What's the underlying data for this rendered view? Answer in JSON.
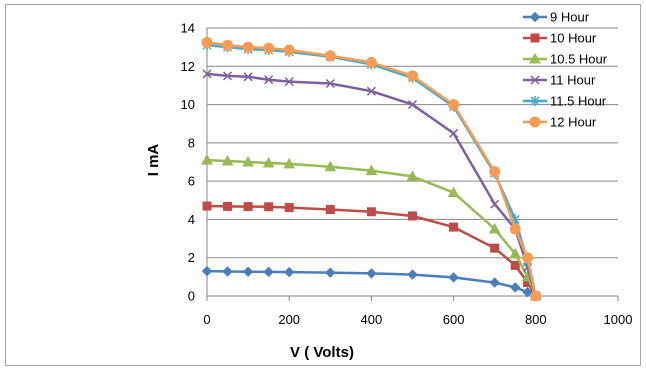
{
  "chart_data": {
    "type": "line",
    "title": "",
    "xlabel": "V ( Volts)",
    "ylabel": "I  mA",
    "xlim": [
      0,
      1000
    ],
    "ylim": [
      0,
      14
    ],
    "xticks": [
      0,
      200,
      400,
      600,
      800,
      1000
    ],
    "yticks": [
      0,
      2,
      4,
      6,
      8,
      10,
      12,
      14
    ],
    "grid": "horizontal",
    "legend": "right",
    "series": [
      {
        "name": "9 Hour",
        "color": "#4a7ebb",
        "marker": "diamond",
        "x": [
          0,
          50,
          100,
          150,
          200,
          300,
          400,
          500,
          600,
          700,
          750,
          780,
          800
        ],
        "y": [
          1.3,
          1.28,
          1.27,
          1.26,
          1.25,
          1.22,
          1.18,
          1.12,
          0.97,
          0.7,
          0.45,
          0.2,
          0
        ]
      },
      {
        "name": "10 Hour",
        "color": "#be4b48",
        "marker": "square",
        "x": [
          0,
          50,
          100,
          150,
          200,
          300,
          400,
          500,
          600,
          700,
          750,
          780,
          800
        ],
        "y": [
          4.7,
          4.68,
          4.67,
          4.66,
          4.62,
          4.52,
          4.4,
          4.18,
          3.6,
          2.5,
          1.6,
          0.7,
          0
        ]
      },
      {
        "name": "10.5 Hour",
        "color": "#98b954",
        "marker": "triangle",
        "x": [
          0,
          50,
          100,
          150,
          200,
          300,
          400,
          500,
          600,
          700,
          750,
          780,
          800
        ],
        "y": [
          7.1,
          7.05,
          7.0,
          6.95,
          6.9,
          6.75,
          6.55,
          6.25,
          5.4,
          3.5,
          2.2,
          1.0,
          0
        ]
      },
      {
        "name": "11 Hour",
        "color": "#7d60a0",
        "marker": "x",
        "x": [
          0,
          50,
          100,
          150,
          200,
          300,
          400,
          500,
          600,
          700,
          750,
          780,
          800
        ],
        "y": [
          11.6,
          11.5,
          11.45,
          11.3,
          11.2,
          11.1,
          10.7,
          10.0,
          8.5,
          4.8,
          3.5,
          1.5,
          0
        ]
      },
      {
        "name": "11.5 Hour",
        "color": "#46aac5",
        "marker": "asterisk",
        "x": [
          0,
          50,
          100,
          150,
          200,
          300,
          400,
          500,
          600,
          700,
          750,
          780,
          800
        ],
        "y": [
          13.1,
          13.0,
          12.9,
          12.85,
          12.75,
          12.5,
          12.1,
          11.4,
          9.9,
          6.4,
          4.0,
          1.8,
          0
        ]
      },
      {
        "name": "12 Hour",
        "color": "#f59d56",
        "marker": "circle",
        "x": [
          0,
          50,
          100,
          150,
          200,
          300,
          400,
          500,
          600,
          700,
          750,
          780,
          800
        ],
        "y": [
          13.25,
          13.1,
          13.0,
          12.95,
          12.85,
          12.55,
          12.2,
          11.5,
          10.0,
          6.5,
          3.5,
          2.0,
          0
        ]
      }
    ]
  }
}
